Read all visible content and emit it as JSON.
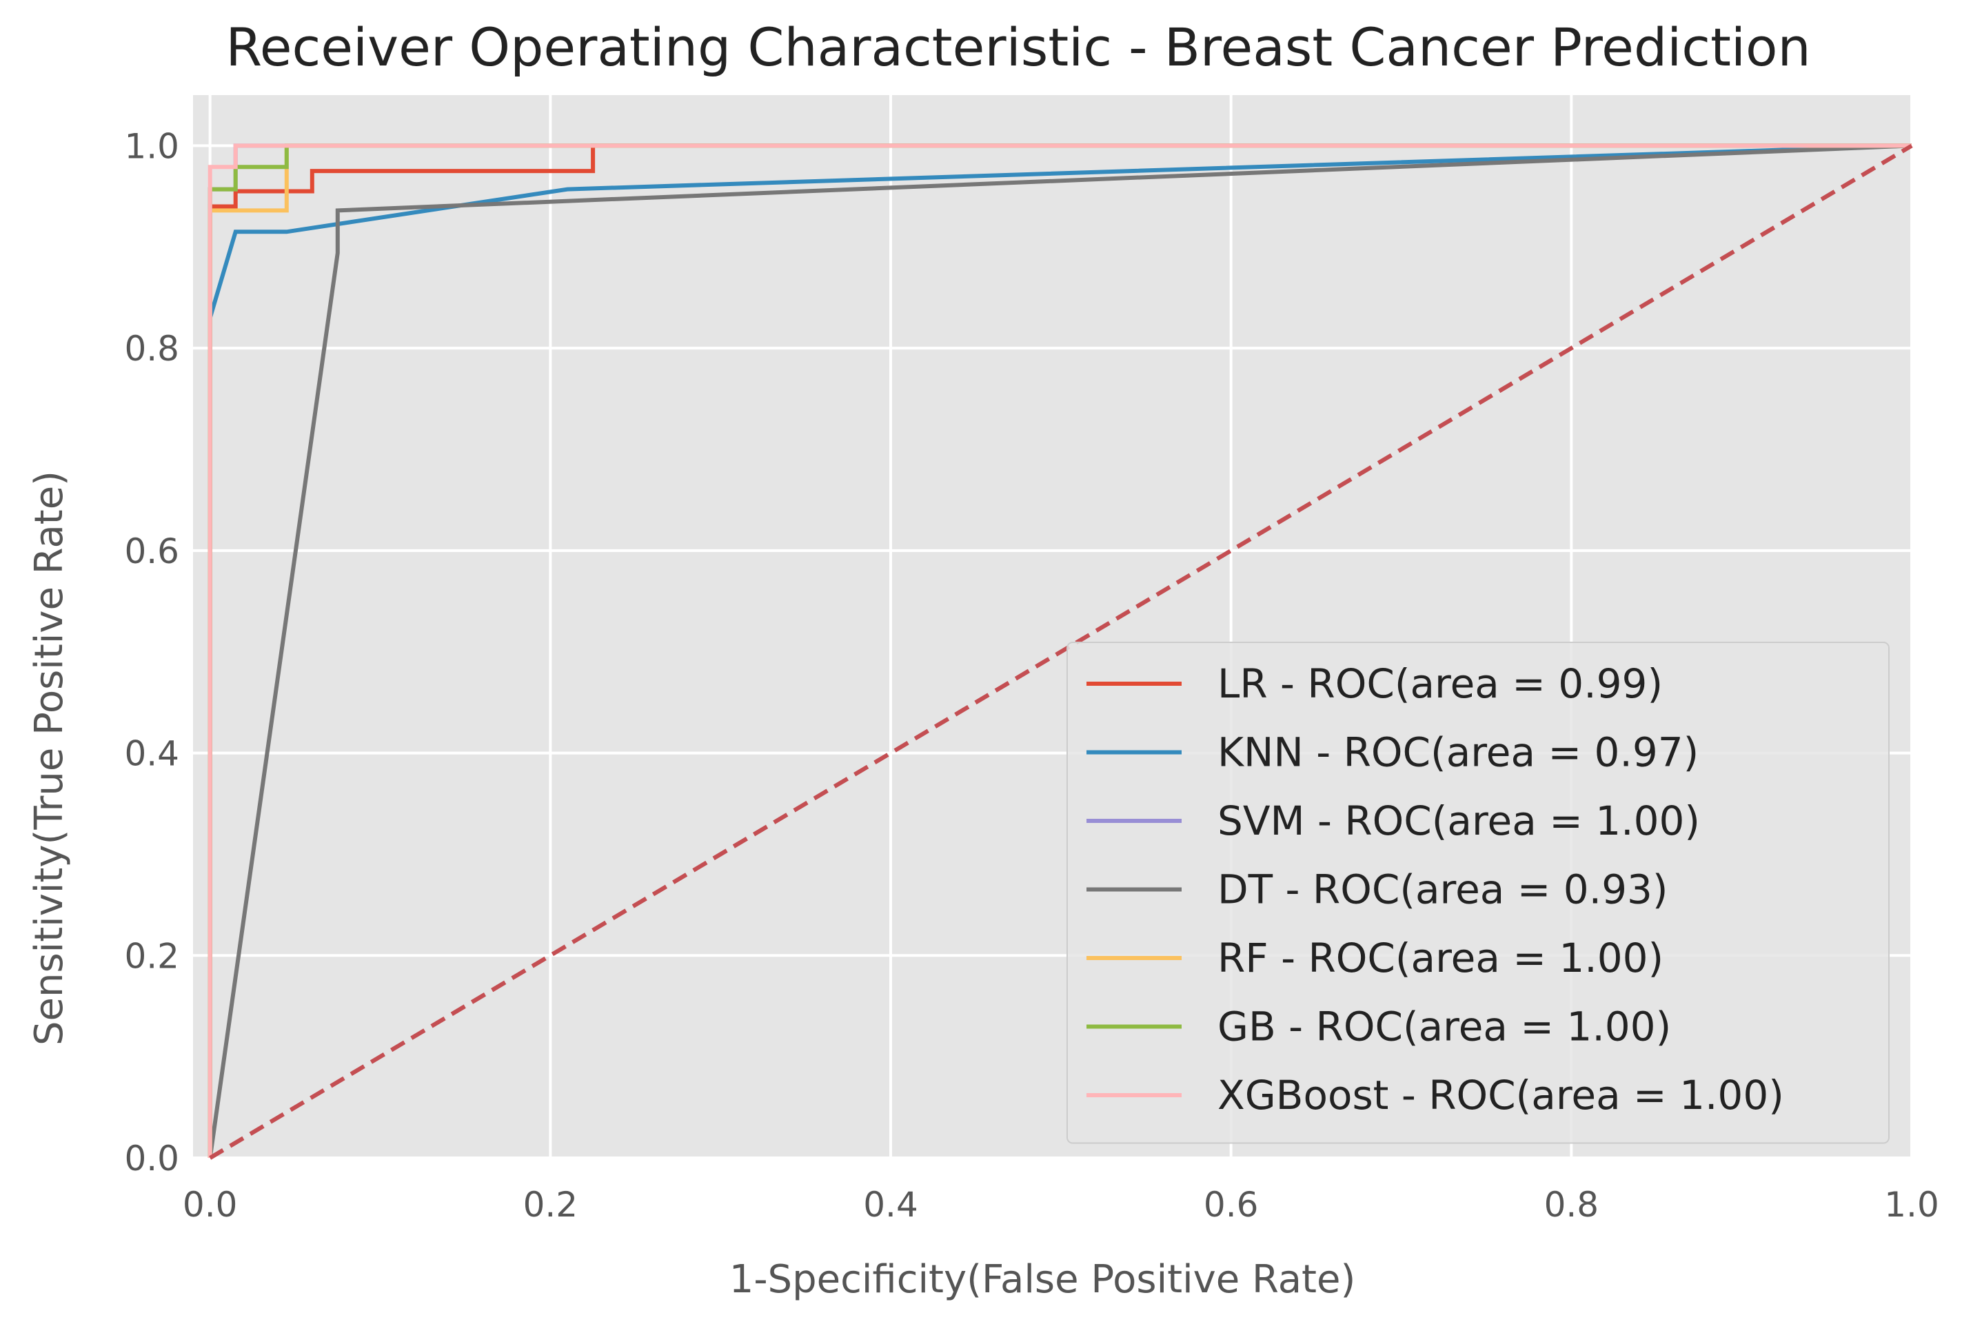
{
  "chart_data": {
    "type": "line",
    "title": "Receiver Operating Characteristic - Breast Cancer Prediction",
    "xlabel": "1-Specificity(False Positive Rate)",
    "ylabel": "Sensitivity(True Positive Rate)",
    "xlim": [
      -0.01,
      1.0
    ],
    "ylim": [
      0.0,
      1.05
    ],
    "xticks": [
      0.0,
      0.2,
      0.4,
      0.6,
      0.8,
      1.0
    ],
    "xtick_labels": [
      "0.0",
      "0.2",
      "0.4",
      "0.6",
      "0.8",
      "1.0"
    ],
    "yticks": [
      0.0,
      0.2,
      0.4,
      0.6,
      0.8,
      1.0
    ],
    "ytick_labels": [
      "0.0",
      "0.2",
      "0.4",
      "0.6",
      "0.8",
      "1.0"
    ],
    "grid": true,
    "legend_position": "lower-right",
    "series": [
      {
        "name": "LR - ROC(area = 0.99)",
        "color": "#E24A33",
        "x": [
          0,
          0,
          0.015,
          0.015,
          0.06,
          0.06,
          0.225,
          0.225,
          1.0
        ],
        "y": [
          0,
          0.94,
          0.94,
          0.955,
          0.955,
          0.975,
          0.975,
          1.0,
          1.0
        ]
      },
      {
        "name": "KNN - ROC(area = 0.97)",
        "color": "#348ABD",
        "x": [
          0,
          0,
          0.015,
          0.045,
          0.21,
          1.0
        ],
        "y": [
          0,
          0.83,
          0.915,
          0.915,
          0.957,
          1.0
        ]
      },
      {
        "name": "SVM - ROC(area = 1.00)",
        "color": "#988ED5",
        "x": [
          0,
          0,
          0.015,
          0.015,
          1.0
        ],
        "y": [
          0,
          0.957,
          0.957,
          1.0,
          1.0
        ]
      },
      {
        "name": "DT - ROC(area = 0.93)",
        "color": "#777777",
        "x": [
          0,
          0.075,
          0.075,
          1.0
        ],
        "y": [
          0,
          0.894,
          0.936,
          1.0
        ]
      },
      {
        "name": "RF - ROC(area = 1.00)",
        "color": "#FBC15E",
        "x": [
          0,
          0,
          0.045,
          0.045,
          1.0
        ],
        "y": [
          0,
          0.936,
          0.936,
          1.0,
          1.0
        ]
      },
      {
        "name": "GB - ROC(area = 1.00)",
        "color": "#8EBA42",
        "x": [
          0,
          0,
          0.015,
          0.015,
          0.045,
          0.045,
          1.0
        ],
        "y": [
          0,
          0.957,
          0.957,
          0.979,
          0.979,
          1.0,
          1.0
        ]
      },
      {
        "name": "XGBoost - ROC(area = 1.00)",
        "color": "#FFB5B8",
        "x": [
          0,
          0,
          0.015,
          0.015,
          1.0
        ],
        "y": [
          0,
          0.979,
          0.979,
          1.0,
          1.0
        ]
      }
    ],
    "reference_line": {
      "x": [
        0,
        1
      ],
      "y": [
        0,
        1
      ],
      "color": "#C44E52",
      "style": "dashed"
    }
  }
}
